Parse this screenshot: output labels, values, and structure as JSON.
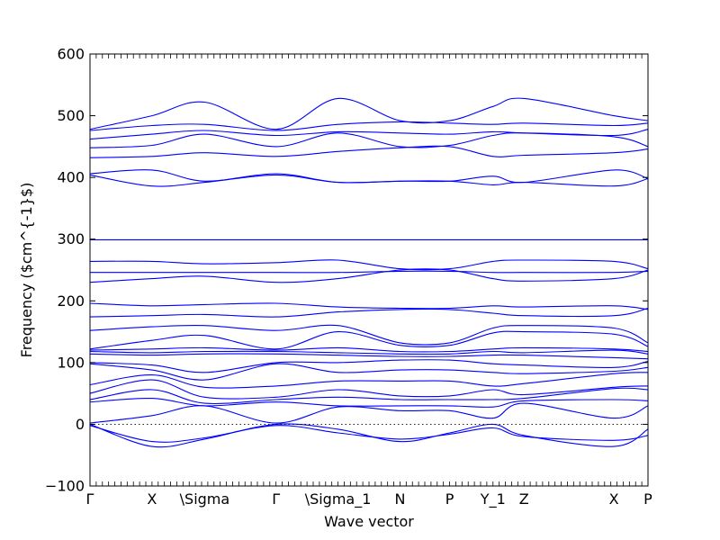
{
  "chart_data": {
    "type": "line",
    "title": "",
    "xlabel": "Wave vector",
    "ylabel": "Frequency ($cm^{-1}$)",
    "ylim": [
      -100,
      600
    ],
    "yticks": [
      -100,
      0,
      100,
      200,
      300,
      400,
      500,
      600
    ],
    "xlim": [
      0,
      9
    ],
    "xticks": [
      {
        "x": 0,
        "label": "Γ"
      },
      {
        "x": 1,
        "label": "X"
      },
      {
        "x": 1.85,
        "label": "\\Sigma"
      },
      {
        "x": 3,
        "label": "Γ"
      },
      {
        "x": 4,
        "label": "\\Sigma_1"
      },
      {
        "x": 5,
        "label": "N"
      },
      {
        "x": 5.8,
        "label": "P"
      },
      {
        "x": 6.5,
        "label": "Y_1"
      },
      {
        "x": 7,
        "label": "Z"
      },
      {
        "x": 8.45,
        "label": "X"
      },
      {
        "x": 9,
        "label": "P"
      }
    ],
    "zero_line": true,
    "grid": false,
    "legend": "none",
    "line_color": "#0000ff",
    "series": [
      {
        "x": [
          0,
          1,
          1.85,
          3,
          4,
          5,
          5.8,
          6.5,
          7,
          8.45,
          9
        ],
        "values": [
          478,
          500,
          522,
          478,
          528,
          492,
          492,
          515,
          528,
          500,
          492
        ]
      },
      {
        "x": [
          0,
          1,
          1.85,
          3,
          4,
          5,
          5.8,
          6.5,
          7,
          8.45,
          9
        ],
        "values": [
          476,
          484,
          486,
          476,
          486,
          490,
          488,
          486,
          488,
          484,
          488
        ]
      },
      {
        "x": [
          0,
          1,
          1.85,
          3,
          4,
          5,
          5.8,
          6.5,
          7,
          8.45,
          9
        ],
        "values": [
          462,
          470,
          476,
          468,
          474,
          472,
          470,
          474,
          472,
          468,
          478
        ]
      },
      {
        "x": [
          0,
          1,
          1.85,
          3,
          4,
          5,
          5.8,
          6.5,
          7,
          8.45,
          9
        ],
        "values": [
          448,
          452,
          470,
          450,
          472,
          450,
          452,
          468,
          472,
          466,
          450
        ]
      },
      {
        "x": [
          0,
          1,
          1.85,
          3,
          4,
          5,
          5.8,
          6.5,
          7,
          8.45,
          9
        ],
        "values": [
          432,
          434,
          440,
          434,
          442,
          448,
          450,
          434,
          436,
          440,
          446
        ]
      },
      {
        "x": [
          0,
          1,
          1.85,
          3,
          4,
          5,
          5.8,
          6.5,
          7,
          8.45,
          9
        ],
        "values": [
          406,
          412,
          394,
          406,
          392,
          394,
          394,
          402,
          392,
          412,
          398
        ]
      },
      {
        "x": [
          0,
          1,
          1.85,
          3,
          4,
          5,
          5.8,
          6.5,
          7,
          8.45,
          9
        ],
        "values": [
          404,
          386,
          392,
          404,
          392,
          394,
          394,
          388,
          392,
          386,
          398
        ]
      },
      {
        "x": [
          0,
          9
        ],
        "values": [
          299,
          299
        ]
      },
      {
        "x": [
          0,
          1,
          1.85,
          3,
          4,
          5,
          5.8,
          6.5,
          7,
          8.45,
          9
        ],
        "values": [
          264,
          264,
          260,
          262,
          266,
          252,
          252,
          264,
          266,
          264,
          252
        ]
      },
      {
        "x": [
          0,
          1,
          1.85,
          3,
          4,
          5,
          5.8,
          6.5,
          7,
          8.45,
          9
        ],
        "values": [
          246,
          246,
          246,
          246,
          246,
          248,
          248,
          246,
          246,
          246,
          248
        ]
      },
      {
        "x": [
          0,
          1,
          1.85,
          3,
          4,
          5,
          5.8,
          6.5,
          7,
          8.45,
          9
        ],
        "values": [
          230,
          236,
          240,
          230,
          236,
          250,
          250,
          236,
          232,
          236,
          250
        ]
      },
      {
        "x": [
          0,
          1,
          1.85,
          3,
          4,
          5,
          5.8,
          6.5,
          7,
          8.45,
          9
        ],
        "values": [
          196,
          192,
          194,
          196,
          190,
          188,
          188,
          192,
          190,
          192,
          186
        ]
      },
      {
        "x": [
          0,
          1,
          1.85,
          3,
          4,
          5,
          5.8,
          6.5,
          7,
          8.45,
          9
        ],
        "values": [
          174,
          176,
          178,
          174,
          182,
          186,
          186,
          180,
          176,
          176,
          188
        ]
      },
      {
        "x": [
          0,
          1,
          1.85,
          3,
          4,
          5,
          5.8,
          6.5,
          7,
          8.45,
          9
        ],
        "values": [
          152,
          158,
          160,
          152,
          160,
          132,
          132,
          156,
          160,
          156,
          132
        ]
      },
      {
        "x": [
          0,
          1,
          1.85,
          3,
          4,
          5,
          5.8,
          6.5,
          7,
          8.45,
          9
        ],
        "values": [
          122,
          136,
          144,
          122,
          150,
          128,
          128,
          148,
          150,
          146,
          126
        ]
      },
      {
        "x": [
          0,
          1,
          1.85,
          3,
          4,
          5,
          5.8,
          6.5,
          7,
          8.45,
          9
        ],
        "values": [
          120,
          122,
          124,
          120,
          124,
          118,
          118,
          122,
          124,
          122,
          118
        ]
      },
      {
        "x": [
          0,
          1,
          1.85,
          3,
          4,
          5,
          5.8,
          6.5,
          7,
          8.45,
          9
        ],
        "values": [
          118,
          116,
          118,
          118,
          116,
          114,
          114,
          118,
          116,
          120,
          114
        ]
      },
      {
        "x": [
          0,
          1,
          1.85,
          3,
          4,
          5,
          5.8,
          6.5,
          7,
          8.45,
          9
        ],
        "values": [
          114,
          112,
          114,
          114,
          112,
          110,
          110,
          112,
          112,
          108,
          106
        ]
      },
      {
        "x": [
          0,
          1,
          1.85,
          3,
          4,
          5,
          5.8,
          6.5,
          7,
          8.45,
          9
        ],
        "values": [
          100,
          96,
          84,
          100,
          100,
          104,
          104,
          98,
          96,
          92,
          102
        ]
      },
      {
        "x": [
          0,
          1,
          1.85,
          3,
          4,
          5,
          5.8,
          6.5,
          7,
          8.45,
          9
        ],
        "values": [
          98,
          88,
          72,
          98,
          84,
          88,
          88,
          84,
          82,
          86,
          92
        ]
      },
      {
        "x": [
          0,
          1,
          1.85,
          3,
          4,
          5,
          5.8,
          6.5,
          7,
          8.45,
          9
        ],
        "values": [
          64,
          80,
          60,
          62,
          70,
          70,
          70,
          62,
          66,
          82,
          84
        ]
      },
      {
        "x": [
          0,
          1,
          1.85,
          3,
          4,
          5,
          5.8,
          6.5,
          7,
          8.45,
          9
        ],
        "values": [
          50,
          72,
          44,
          44,
          56,
          46,
          46,
          56,
          48,
          60,
          62
        ]
      },
      {
        "x": [
          0,
          1,
          1.85,
          3,
          4,
          5,
          5.8,
          6.5,
          7,
          8.45,
          9
        ],
        "values": [
          40,
          56,
          34,
          40,
          44,
          40,
          40,
          40,
          42,
          58,
          56
        ]
      },
      {
        "x": [
          0,
          1,
          1.85,
          3,
          4,
          5,
          5.8,
          6.5,
          7,
          8.45,
          9
        ],
        "values": [
          36,
          42,
          30,
          36,
          30,
          30,
          30,
          28,
          38,
          40,
          38
        ]
      },
      {
        "x": [
          0,
          1,
          1.85,
          3,
          4,
          5,
          5.8,
          6.5,
          7,
          8.45,
          9
        ],
        "values": [
          2,
          14,
          30,
          2,
          28,
          22,
          22,
          10,
          34,
          10,
          30
        ]
      },
      {
        "x": [
          0,
          1,
          1.85,
          3,
          4,
          5,
          5.8,
          6.5,
          7,
          8.45,
          9
        ],
        "values": [
          0,
          -36,
          -24,
          0,
          -8,
          -28,
          -14,
          0,
          -18,
          -36,
          -8
        ]
      },
      {
        "x": [
          0,
          1,
          1.85,
          3,
          4,
          5,
          5.8,
          6.5,
          7,
          8.45,
          9
        ],
        "values": [
          -2,
          -28,
          -22,
          -2,
          -14,
          -24,
          -16,
          -6,
          -20,
          -26,
          -18
        ]
      }
    ]
  }
}
